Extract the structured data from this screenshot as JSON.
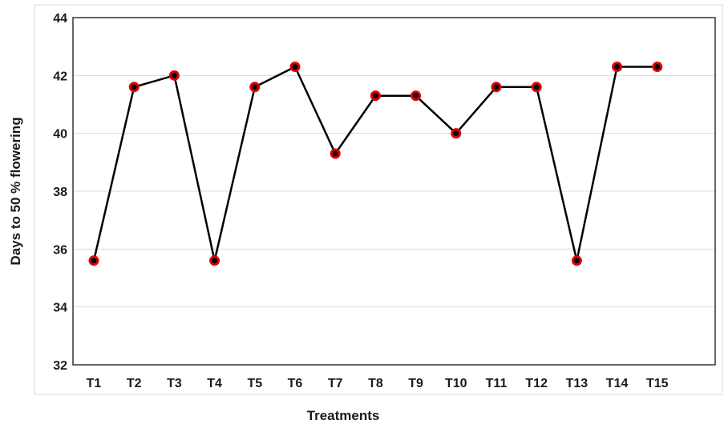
{
  "chart_data": {
    "type": "line",
    "title": "",
    "xlabel": "Treatments",
    "ylabel": "Days  to 50 % flowering",
    "categories": [
      "T1",
      "T2",
      "T3",
      "T4",
      "T5",
      "T6",
      "T7",
      "T8",
      "T9",
      "T10",
      "T11",
      "T12",
      "T13",
      "T14",
      "T15"
    ],
    "series": [
      {
        "values": [
          35.6,
          41.6,
          42.0,
          35.6,
          41.6,
          42.3,
          39.3,
          41.3,
          41.3,
          40.0,
          41.6,
          41.6,
          35.6,
          42.3,
          42.3
        ],
        "line_color": "#000000",
        "marker_fill": "#000000",
        "marker_edge": "#e00000"
      }
    ],
    "ylim": [
      32,
      44
    ],
    "yticks": [
      32,
      34,
      36,
      38,
      40,
      42,
      44
    ],
    "grid": true,
    "legend": false
  }
}
